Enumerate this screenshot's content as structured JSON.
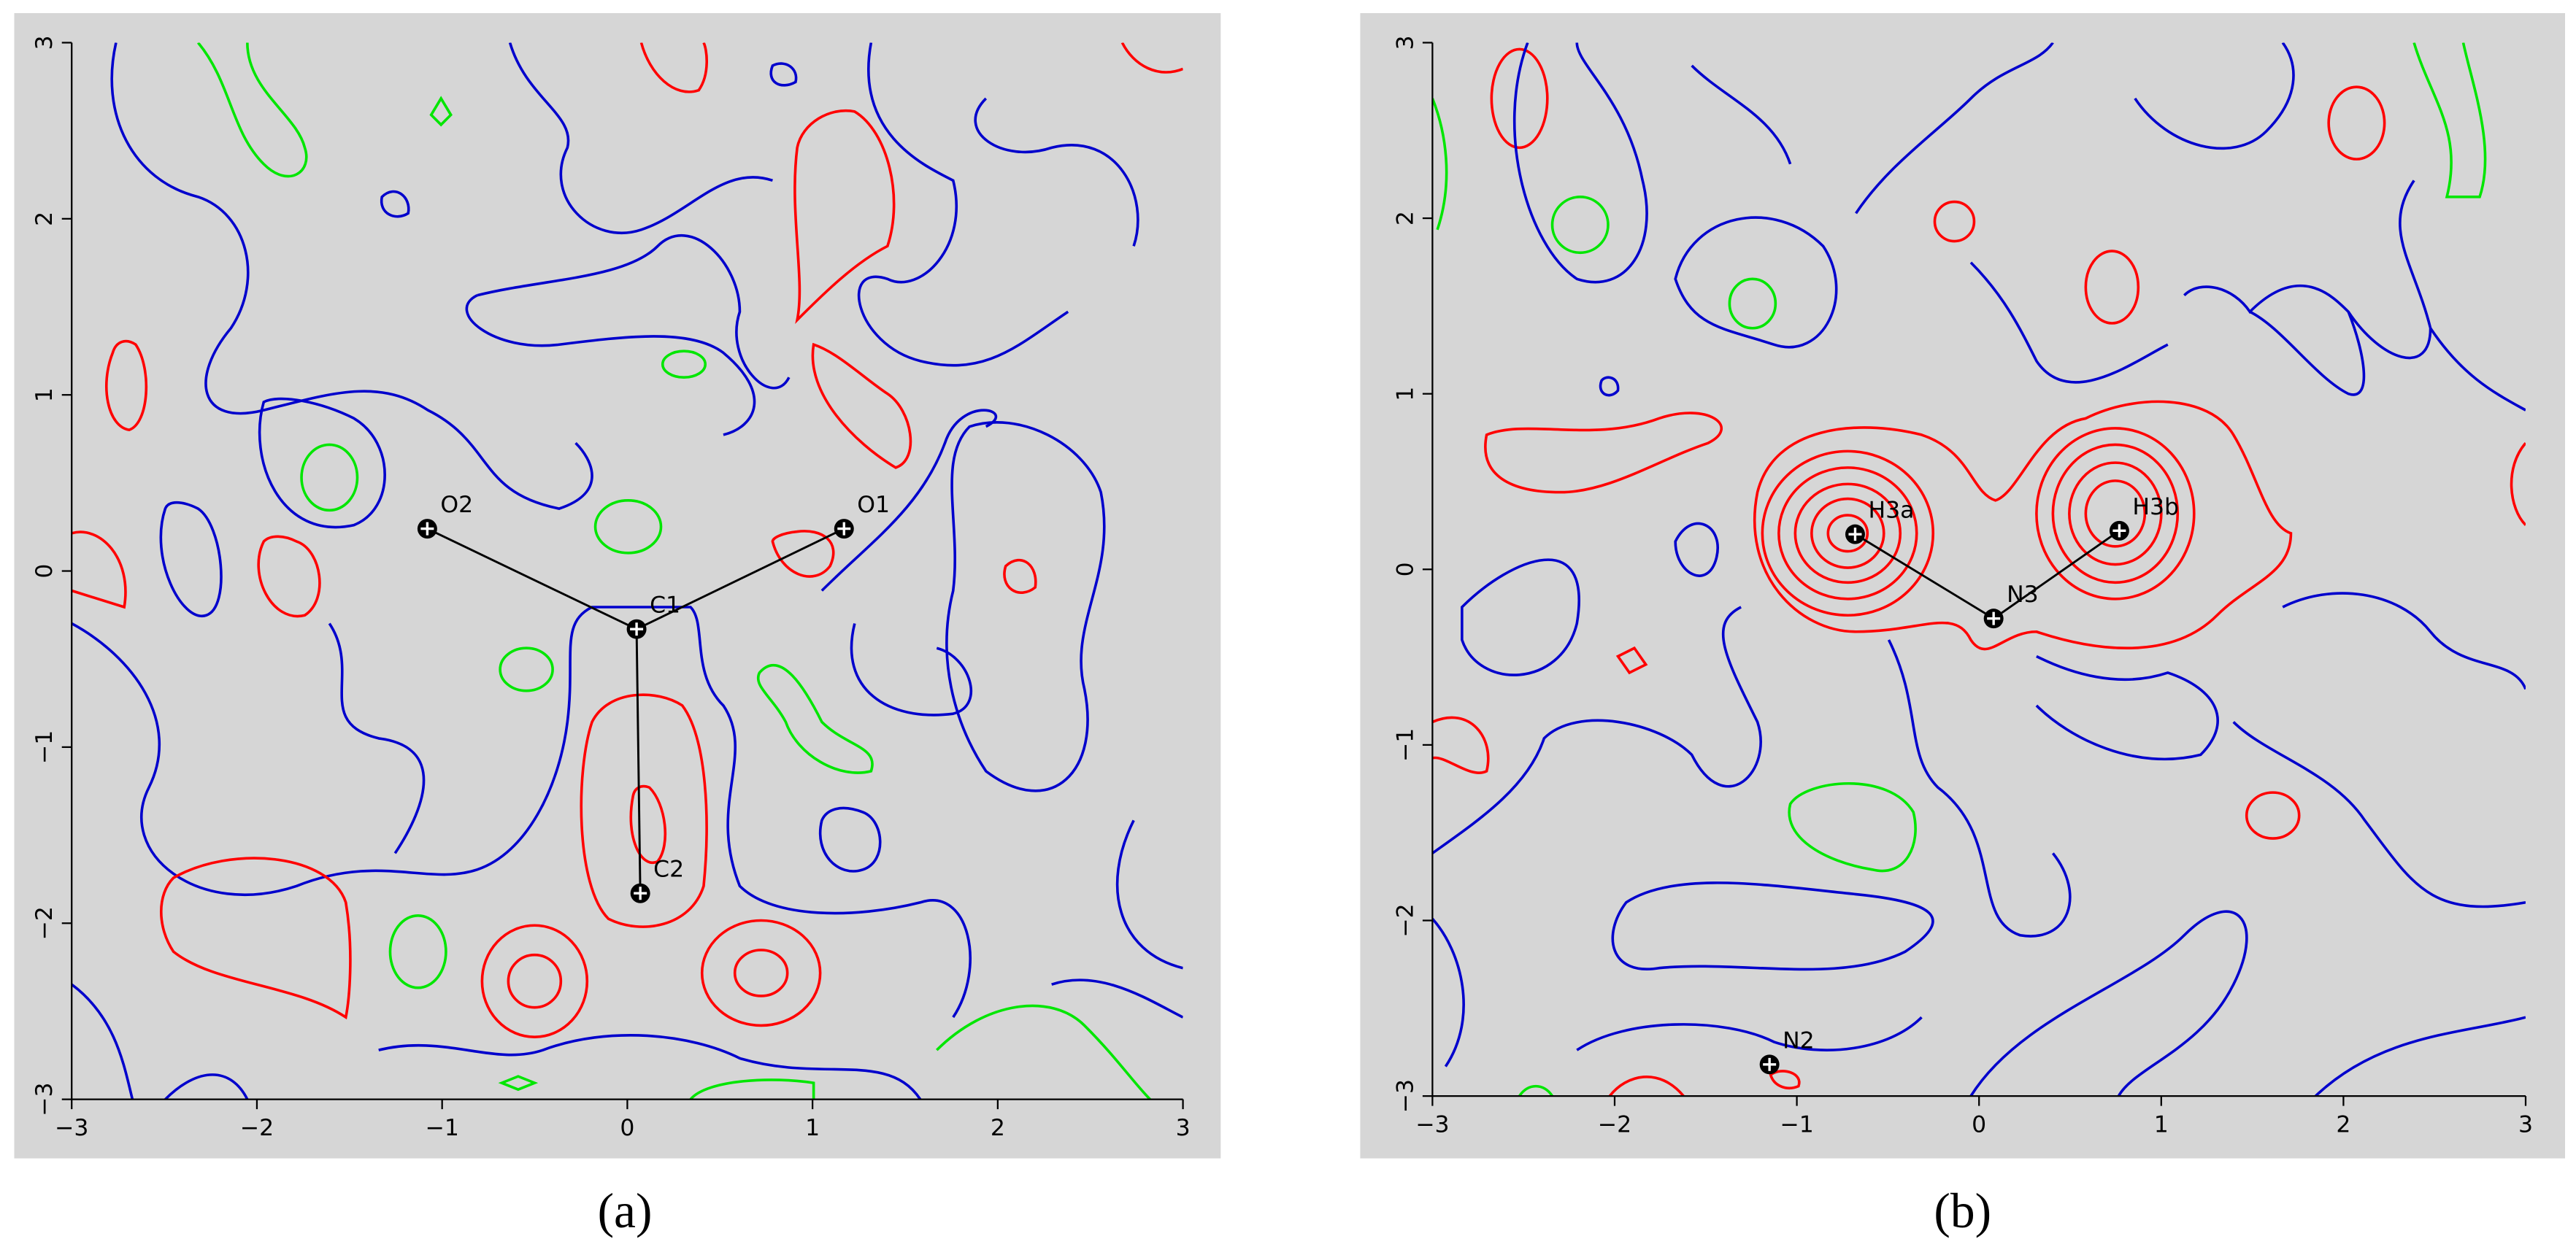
{
  "chart_data": [
    {
      "type": "scatter",
      "panel_label": "(a)",
      "xlim": [
        -3,
        3
      ],
      "ylim": [
        -3,
        3
      ],
      "xticks": [
        {
          "value": -3,
          "label": "−3"
        },
        {
          "value": -2,
          "label": "−2"
        },
        {
          "value": -1,
          "label": "−1"
        },
        0,
        1,
        2,
        3
      ],
      "yticks": [
        {
          "value": -3,
          "label": "−3"
        },
        {
          "value": -2,
          "label": "−2"
        },
        {
          "value": -1,
          "label": "−1"
        },
        0,
        1,
        2,
        3
      ],
      "labels": [
        "O2",
        "O1",
        "C1",
        "C2"
      ],
      "x": [
        -1.08,
        1.17,
        0.05,
        0.07
      ],
      "values": [
        0.24,
        0.24,
        -0.33,
        -1.83
      ]
    },
    {
      "type": "scatter",
      "panel_label": "(b)",
      "xlim": [
        -3,
        3
      ],
      "ylim": [
        -3,
        3
      ],
      "xticks": [
        {
          "value": -3,
          "label": "−3"
        },
        {
          "value": -2,
          "label": "−2"
        },
        {
          "value": -1,
          "label": "−1"
        },
        0,
        1,
        2,
        3
      ],
      "yticks": [
        {
          "value": -3,
          "label": "−3"
        },
        {
          "value": -2,
          "label": "−2"
        },
        {
          "value": -1,
          "label": "−1"
        },
        0,
        1,
        2,
        3
      ],
      "labels": [
        "H3a",
        "H3b",
        "N3",
        "N2"
      ],
      "x": [
        -0.68,
        0.77,
        0.08,
        -1.15
      ],
      "values": [
        0.2,
        0.22,
        -0.28,
        -2.82
      ]
    }
  ]
}
